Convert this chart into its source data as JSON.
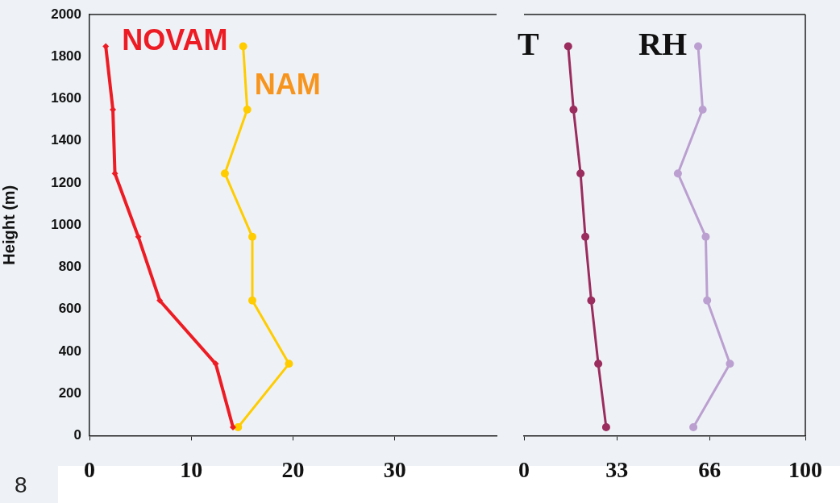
{
  "chart_data": [
    {
      "type": "line",
      "ylabel": "Height (m)",
      "xlim": [
        0,
        40
      ],
      "xticks": [
        0,
        10,
        20,
        30
      ],
      "ylim": [
        0,
        2000
      ],
      "yticks": [
        0,
        200,
        400,
        600,
        800,
        1000,
        1200,
        1400,
        1600,
        1800,
        2000
      ],
      "grid": false,
      "legend": false,
      "line_style": "solid",
      "annotations": [
        "8"
      ],
      "series": [
        {
          "name": "NOVAM",
          "color": "#ed1c24",
          "marker": "diamond",
          "x": [
            1.6,
            2.3,
            2.5,
            4.8,
            6.9,
            12.4,
            14.1
          ],
          "values": [
            1849,
            1548,
            1245,
            944,
            642,
            341,
            40
          ]
        },
        {
          "name": "NAM",
          "color": "#ffcc00",
          "marker": "circle",
          "x": [
            15.1,
            15.5,
            13.3,
            16.0,
            16.0,
            19.6,
            14.6
          ],
          "values": [
            1849,
            1548,
            1245,
            944,
            642,
            341,
            40
          ]
        }
      ]
    },
    {
      "type": "line",
      "xlim": [
        0,
        100
      ],
      "xticks": [
        0,
        33,
        66,
        100
      ],
      "ylim": [
        0,
        2000
      ],
      "tick_labels": "x",
      "grid": false,
      "legend": false,
      "line_style": "solid",
      "series": [
        {
          "name": "T",
          "color": "#9b2c5e",
          "marker": "circle",
          "x": [
            15.7,
            17.6,
            20.1,
            21.8,
            23.9,
            26.4,
            29.2
          ],
          "values": [
            1849,
            1548,
            1245,
            944,
            642,
            341,
            40
          ]
        },
        {
          "name": "RH",
          "color": "#bb9fd0",
          "marker": "circle",
          "x": [
            61.9,
            63.5,
            54.7,
            64.6,
            65.1,
            73.2,
            60.2
          ],
          "values": [
            1849,
            1548,
            1245,
            944,
            642,
            341,
            40
          ]
        }
      ]
    }
  ]
}
